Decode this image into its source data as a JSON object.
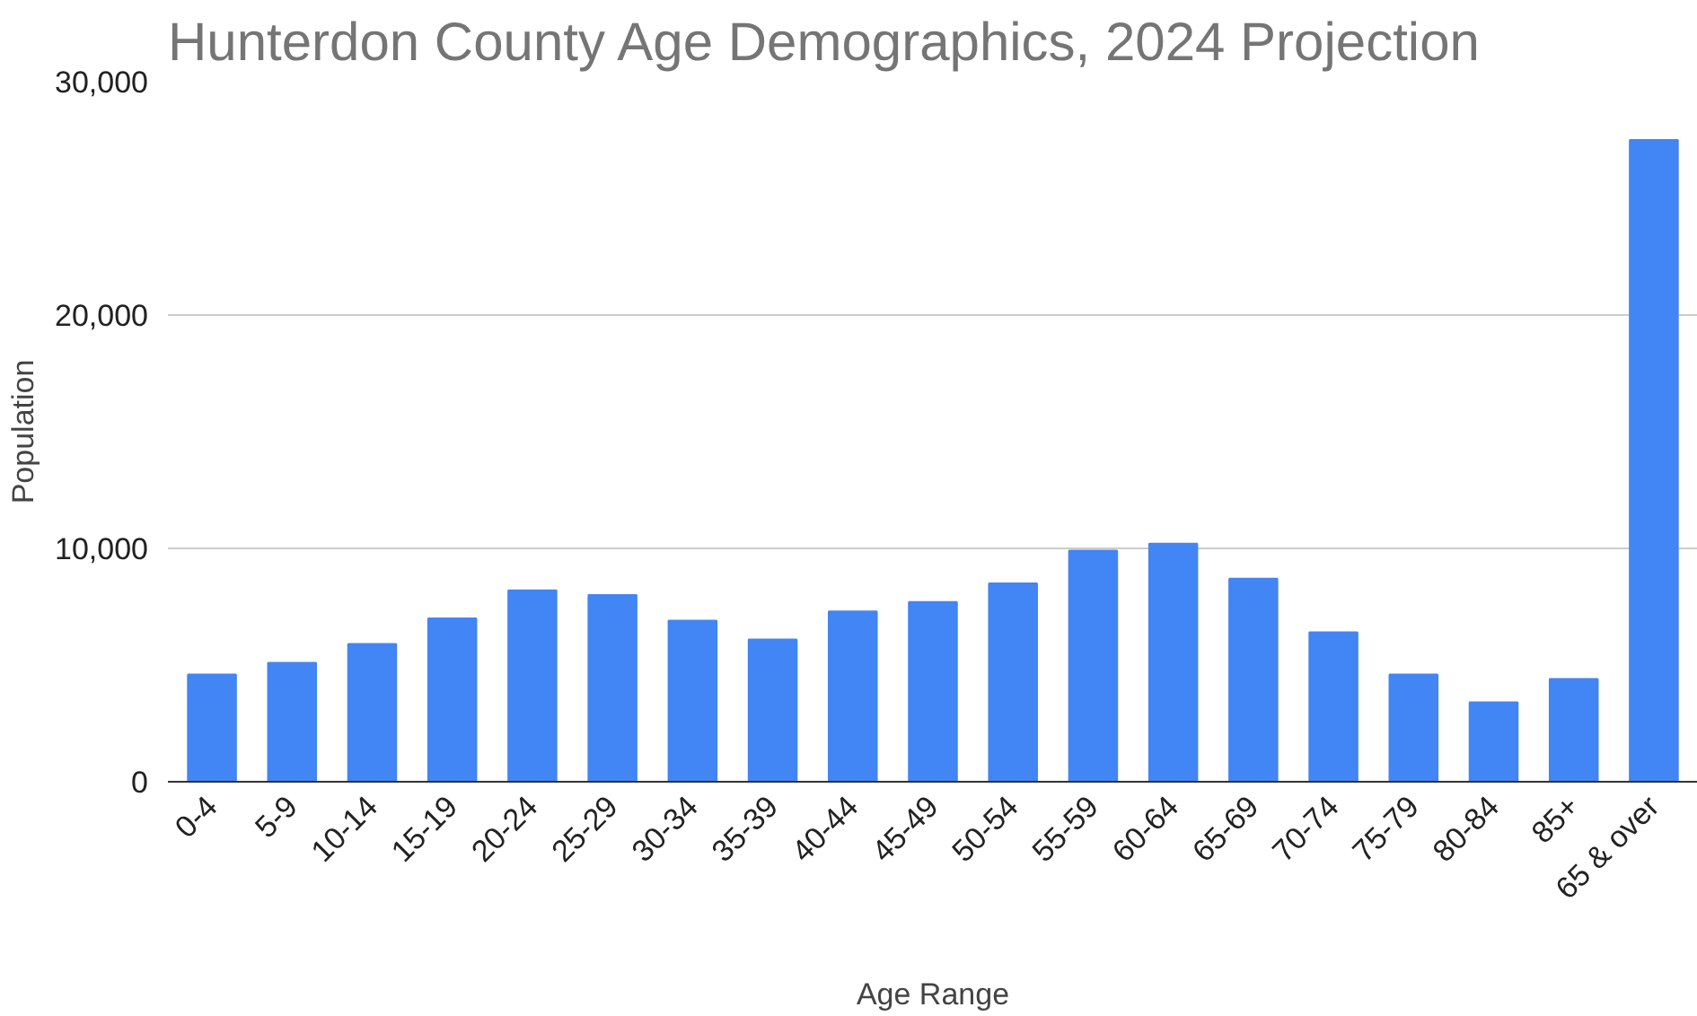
{
  "chart_data": {
    "type": "bar",
    "title": "Hunterdon County Age Demographics, 2024 Projection",
    "xlabel": "Age Range",
    "ylabel": "Population",
    "categories": [
      "0-4",
      "5-9",
      "10-14",
      "15-19",
      "20-24",
      "25-29",
      "30-34",
      "35-39",
      "40-44",
      "45-49",
      "50-54",
      "55-59",
      "60-64",
      "65-69",
      "70-74",
      "75-79",
      "80-84",
      "85+",
      "65 & over"
    ],
    "values": [
      4600,
      5100,
      5900,
      7000,
      8200,
      8000,
      6900,
      6100,
      7300,
      7700,
      8500,
      9900,
      10200,
      8700,
      6400,
      4600,
      3400,
      4400,
      27500
    ],
    "color": "#4285f4",
    "ylim": [
      0,
      30000
    ],
    "yticks": [
      {
        "value": 0,
        "label": "0"
      },
      {
        "value": 10000,
        "label": "10,000"
      },
      {
        "value": 20000,
        "label": "20,000"
      },
      {
        "value": 30000,
        "label": "30,000"
      }
    ],
    "grid": "y"
  }
}
